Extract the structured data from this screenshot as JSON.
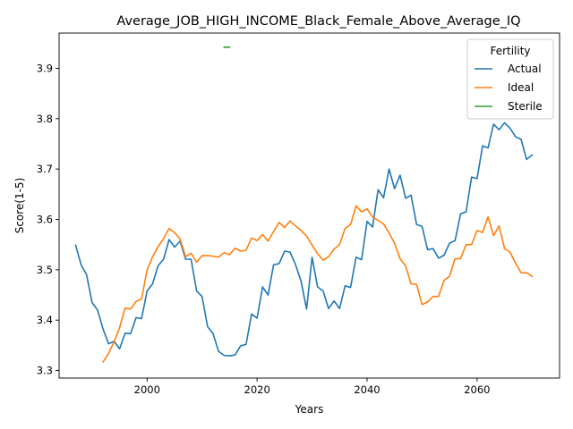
{
  "chart_data": {
    "type": "line",
    "title": "Average_JOB_HIGH_INCOME_Black_Female_Above_Average_IQ",
    "xlabel": "Years",
    "ylabel": "Score(1-5)",
    "xlim": [
      1984,
      2075
    ],
    "ylim": [
      3.285,
      3.97
    ],
    "xticks": [
      2000,
      2020,
      2040,
      2060
    ],
    "yticks": [
      3.3,
      3.4,
      3.5,
      3.6,
      3.7,
      3.8,
      3.9
    ],
    "grid": false,
    "legend": {
      "title": "Fertility",
      "placement": "top-right"
    },
    "series": [
      {
        "name": "Actual",
        "color": "#1f77b4",
        "x": [
          1987,
          1988,
          1989,
          1990,
          1991,
          1992,
          1993,
          1994,
          1995,
          1996,
          1997,
          1998,
          1999,
          2000,
          2001,
          2002,
          2003,
          2004,
          2005,
          2006,
          2007,
          2008,
          2009,
          2010,
          2011,
          2012,
          2013,
          2014,
          2015,
          2016,
          2017,
          2018,
          2019,
          2020,
          2021,
          2022,
          2023,
          2024,
          2025,
          2026,
          2027,
          2028,
          2029,
          2030,
          2031,
          2032,
          2033,
          2034,
          2035,
          2036,
          2037,
          2038,
          2039,
          2040,
          2041,
          2042,
          2043,
          2044,
          2045,
          2046,
          2047,
          2048,
          2049,
          2050,
          2051,
          2052,
          2053,
          2054,
          2055,
          2056,
          2057,
          2058,
          2059,
          2060,
          2061,
          2062,
          2063,
          2064,
          2065,
          2066,
          2067,
          2068,
          2069,
          2070
        ],
        "y": [
          3.549,
          3.51,
          3.49,
          3.435,
          3.42,
          3.382,
          3.353,
          3.358,
          3.343,
          3.374,
          3.373,
          3.405,
          3.403,
          3.458,
          3.472,
          3.508,
          3.521,
          3.56,
          3.545,
          3.557,
          3.521,
          3.521,
          3.458,
          3.447,
          3.387,
          3.373,
          3.338,
          3.33,
          3.329,
          3.331,
          3.349,
          3.352,
          3.412,
          3.404,
          3.466,
          3.45,
          3.51,
          3.512,
          3.537,
          3.535,
          3.51,
          3.477,
          3.422,
          3.525,
          3.466,
          3.458,
          3.423,
          3.438,
          3.423,
          3.468,
          3.465,
          3.525,
          3.52,
          3.596,
          3.585,
          3.659,
          3.643,
          3.7,
          3.661,
          3.688,
          3.642,
          3.648,
          3.59,
          3.586,
          3.54,
          3.542,
          3.523,
          3.529,
          3.553,
          3.558,
          3.611,
          3.615,
          3.684,
          3.681,
          3.746,
          3.742,
          3.789,
          3.778,
          3.792,
          3.781,
          3.764,
          3.759,
          3.719,
          3.728
        ]
      },
      {
        "name": "Ideal",
        "color": "#ff7f0e",
        "x": [
          1992,
          1993,
          1994,
          1995,
          1996,
          1997,
          1998,
          1999,
          2000,
          2001,
          2002,
          2003,
          2004,
          2005,
          2006,
          2007,
          2008,
          2009,
          2010,
          2011,
          2012,
          2013,
          2014,
          2015,
          2016,
          2017,
          2018,
          2019,
          2020,
          2021,
          2022,
          2023,
          2024,
          2025,
          2026,
          2027,
          2028,
          2029,
          2030,
          2031,
          2032,
          2033,
          2034,
          2035,
          2036,
          2037,
          2038,
          2039,
          2040,
          2041,
          2042,
          2043,
          2044,
          2045,
          2046,
          2047,
          2048,
          2049,
          2050,
          2051,
          2052,
          2053,
          2054,
          2055,
          2056,
          2057,
          2058,
          2059,
          2060,
          2061,
          2062,
          2063,
          2064,
          2065,
          2066,
          2067,
          2068,
          2069,
          2070
        ],
        "y": [
          3.317,
          3.334,
          3.357,
          3.385,
          3.424,
          3.422,
          3.437,
          3.442,
          3.5,
          3.526,
          3.546,
          3.562,
          3.582,
          3.574,
          3.561,
          3.526,
          3.533,
          3.515,
          3.528,
          3.528,
          3.527,
          3.525,
          3.534,
          3.53,
          3.543,
          3.537,
          3.539,
          3.563,
          3.558,
          3.57,
          3.557,
          3.576,
          3.594,
          3.584,
          3.597,
          3.587,
          3.578,
          3.567,
          3.549,
          3.532,
          3.519,
          3.526,
          3.541,
          3.55,
          3.582,
          3.59,
          3.627,
          3.615,
          3.621,
          3.605,
          3.598,
          3.591,
          3.573,
          3.553,
          3.522,
          3.508,
          3.472,
          3.471,
          3.431,
          3.436,
          3.447,
          3.447,
          3.479,
          3.487,
          3.522,
          3.522,
          3.55,
          3.55,
          3.578,
          3.574,
          3.605,
          3.568,
          3.587,
          3.542,
          3.535,
          3.513,
          3.494,
          3.494,
          3.487
        ]
      },
      {
        "name": "Sterile",
        "color": "#2ca02c",
        "x": [
          2014,
          2015
        ],
        "y": [
          3.942,
          3.942
        ]
      }
    ]
  }
}
